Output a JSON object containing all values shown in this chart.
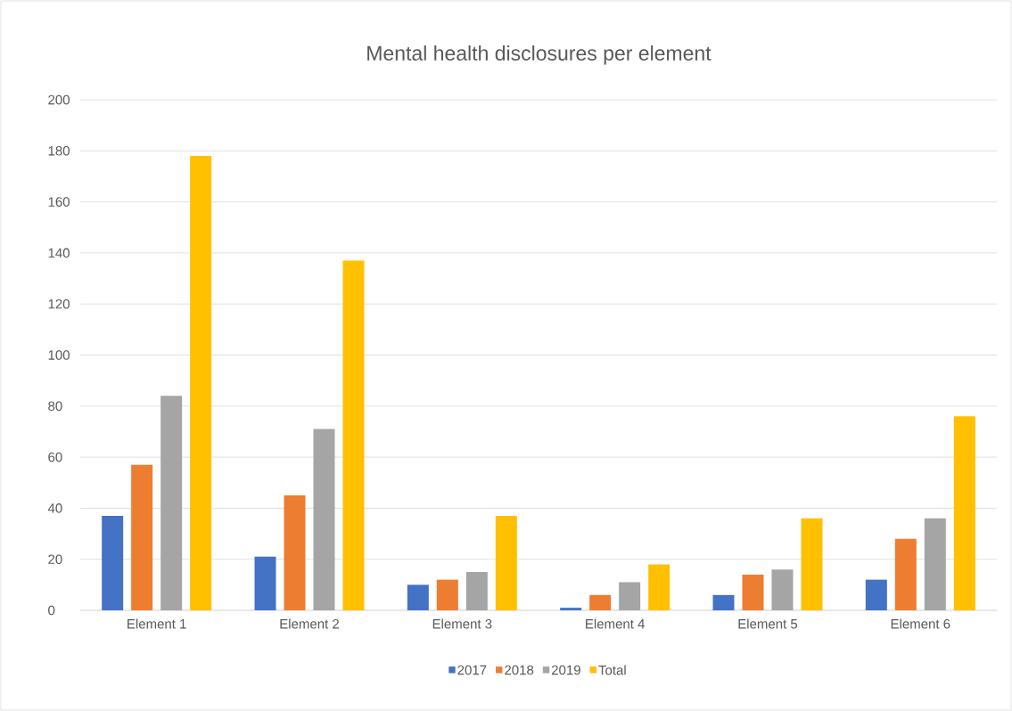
{
  "chart_data": {
    "type": "bar",
    "title": "Mental health disclosures per element",
    "categories": [
      "Element 1",
      "Element 2",
      "Element 3",
      "Element 4",
      "Element 5",
      "Element 6"
    ],
    "series": [
      {
        "name": "2017",
        "color": "#4472c4",
        "values": [
          37,
          21,
          10,
          1,
          6,
          12
        ]
      },
      {
        "name": "2018",
        "color": "#ed7d31",
        "values": [
          57,
          45,
          12,
          6,
          14,
          28
        ]
      },
      {
        "name": "2019",
        "color": "#a5a5a5",
        "values": [
          84,
          71,
          15,
          11,
          16,
          36
        ]
      },
      {
        "name": "Total",
        "color": "#ffc000",
        "values": [
          178,
          137,
          37,
          18,
          36,
          76
        ]
      }
    ],
    "ylim": [
      0,
      200
    ],
    "yticks": [
      0,
      20,
      40,
      60,
      80,
      100,
      120,
      140,
      160,
      180,
      200
    ],
    "grid": "y",
    "legend": "bottom"
  }
}
